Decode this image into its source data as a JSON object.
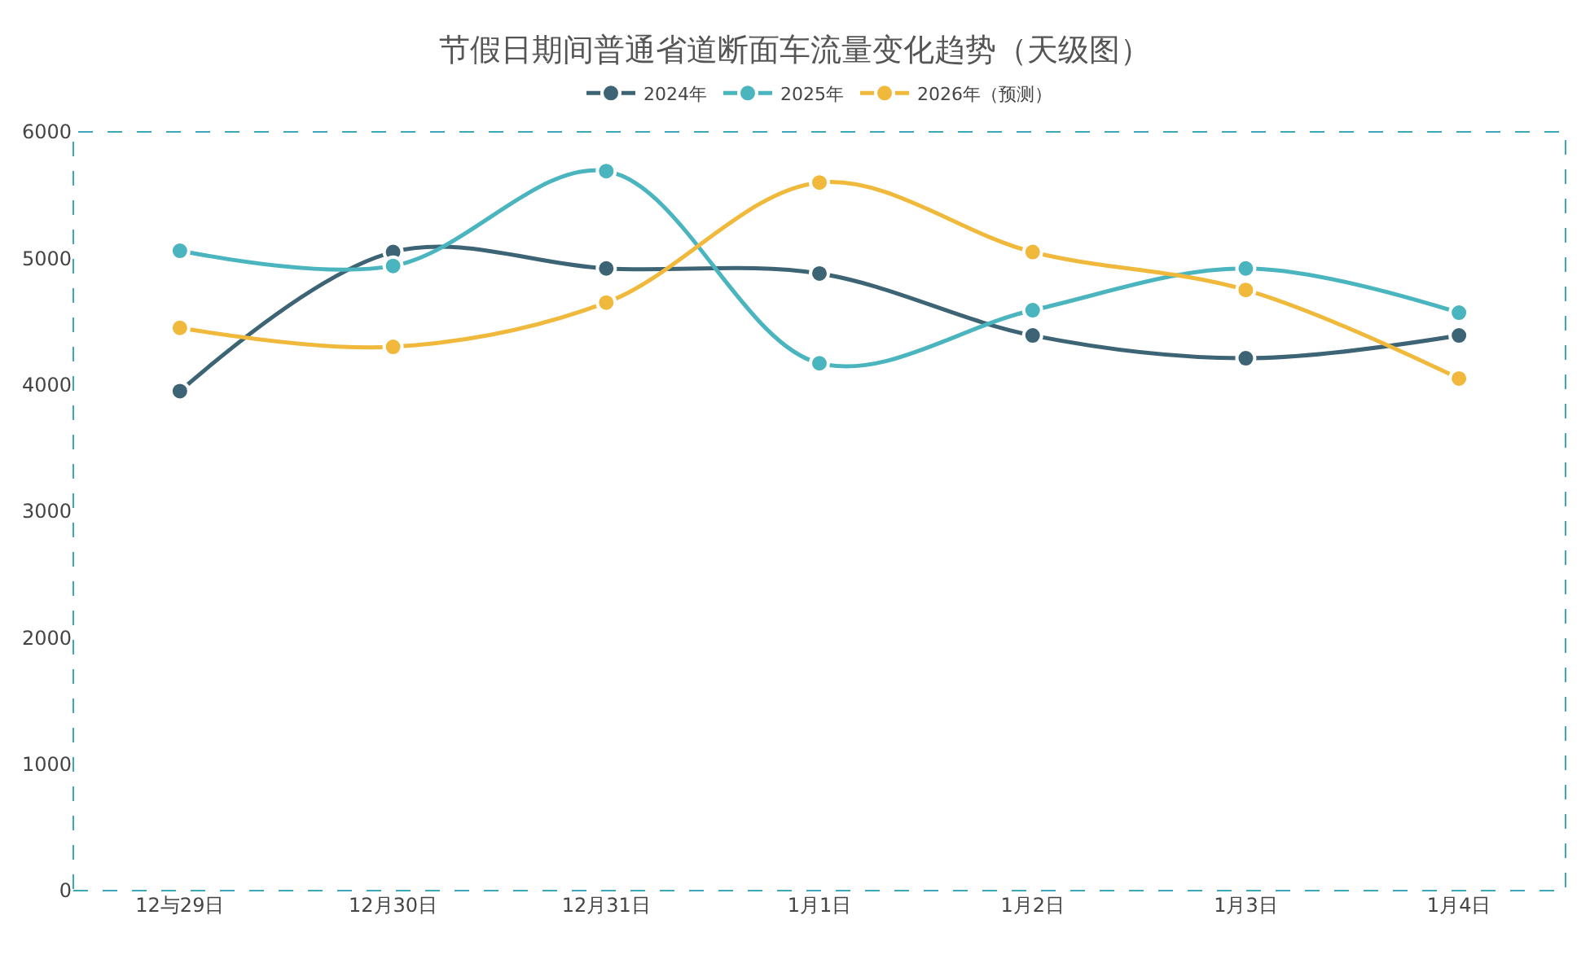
{
  "chart_data": {
    "type": "line",
    "title": "节假日期间普通省道断面车流量变化趋势（天级图）",
    "categories": [
      "12与29日",
      "12月30日",
      "12月31日",
      "1月1日",
      "1月2日",
      "1月3日",
      "1月4日"
    ],
    "series": [
      {
        "name": "2024年",
        "color": "#3d6475",
        "values": [
          3950,
          5050,
          4920,
          4880,
          4390,
          4210,
          4390
        ]
      },
      {
        "name": "2025年",
        "color": "#4ab5be",
        "values": [
          5060,
          4940,
          5690,
          4170,
          4590,
          4920,
          4570
        ]
      },
      {
        "name": "2026年（预测）",
        "color": "#f0b93b",
        "values": [
          4450,
          4300,
          4650,
          5600,
          5050,
          4750,
          4050
        ]
      }
    ],
    "ylim": [
      0,
      6000
    ],
    "yticks": [
      0,
      1000,
      2000,
      3000,
      4000,
      5000,
      6000
    ],
    "legend": "top",
    "marker": "circle",
    "line_style": "solid"
  }
}
